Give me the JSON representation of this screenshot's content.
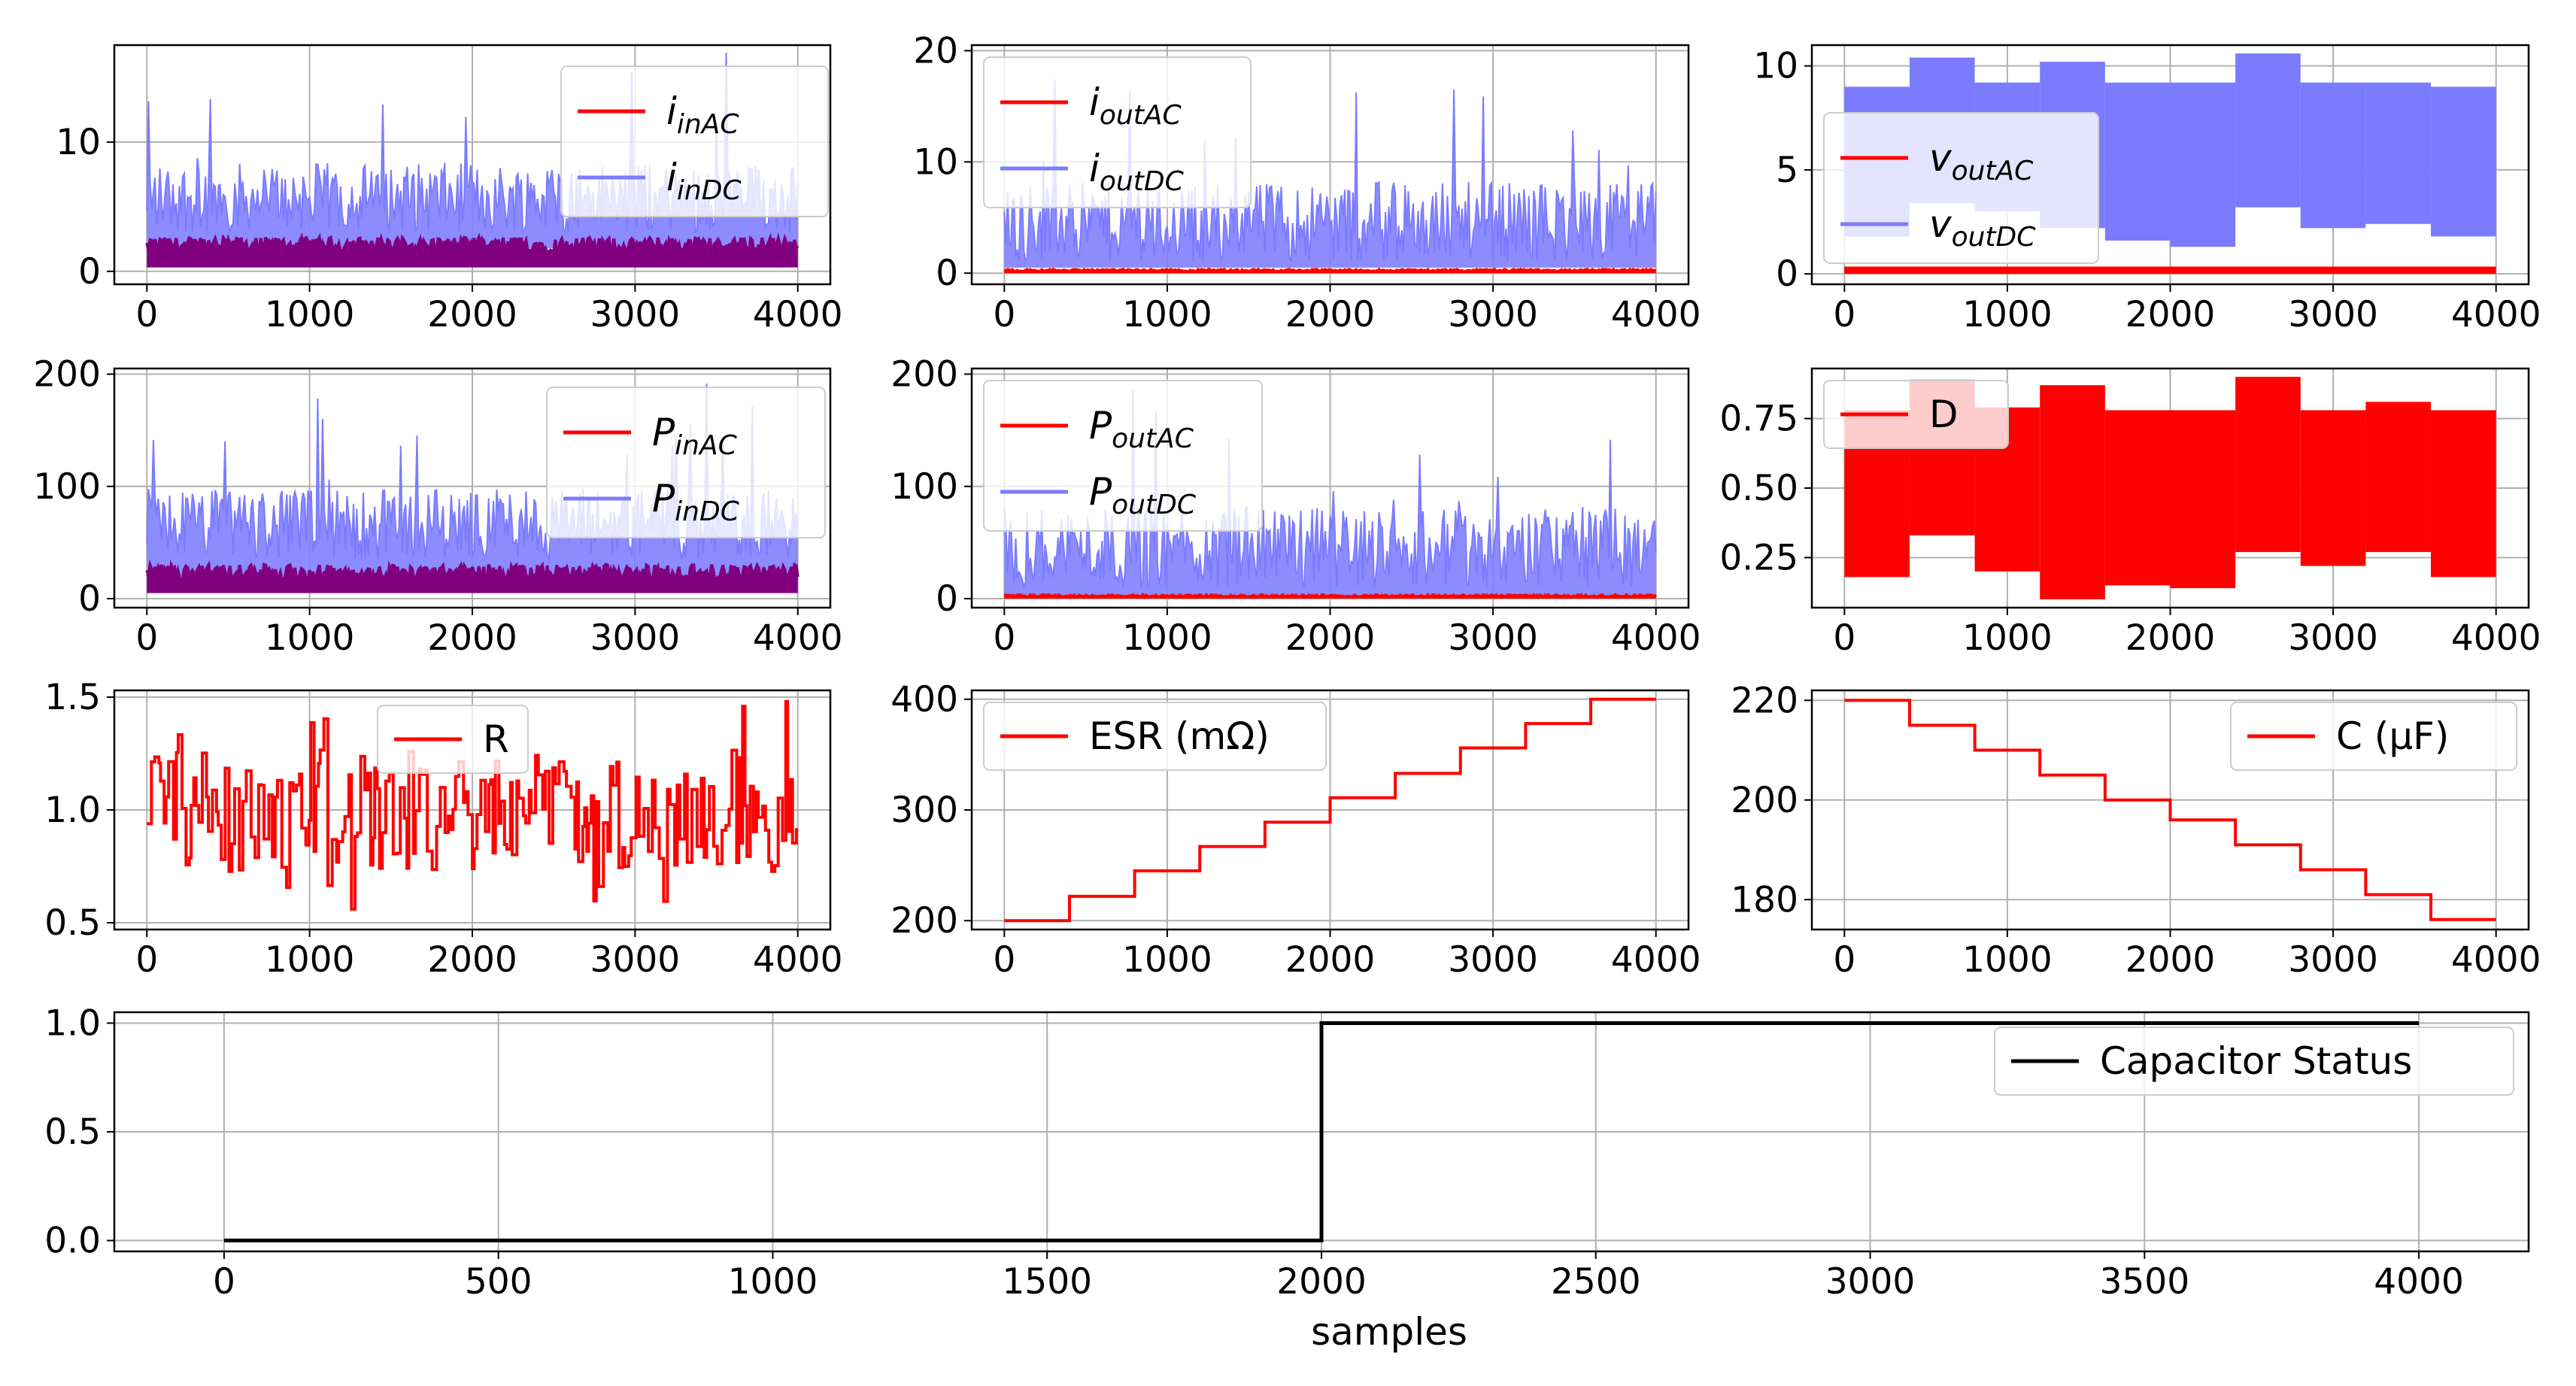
{
  "figure": {
    "xlabel": "samples"
  },
  "chart_data": [
    {
      "id": "i_in",
      "type": "line",
      "title": "",
      "x_range": [
        0,
        4000
      ],
      "ylim": [
        -1,
        17.5
      ],
      "xticks": [
        "0",
        "1000",
        "2000",
        "3000",
        "4000"
      ],
      "yticks": [
        {
          "v": 0,
          "label": "0"
        },
        {
          "v": 10,
          "label": "10"
        }
      ],
      "legend_position": "top-right",
      "series": [
        {
          "name": "i",
          "sub": "inAC",
          "color": "#ff0000",
          "base": 1.8,
          "amp": 1.2,
          "approx_range": [
            0.3,
            4.5
          ]
        },
        {
          "name": "i",
          "sub": "inDC",
          "color": "#7b7bff",
          "base": 3,
          "amp": 6,
          "approx_range": [
            2,
            17.2
          ]
        }
      ],
      "overlap_color": "#800080",
      "overlap_note": "AC and DC traces overlap producing purple band"
    },
    {
      "id": "i_out",
      "type": "line",
      "title": "",
      "x_range": [
        0,
        4000
      ],
      "ylim": [
        -1,
        20.5
      ],
      "xticks": [
        "0",
        "1000",
        "2000",
        "3000",
        "4000"
      ],
      "yticks": [
        {
          "v": 0,
          "label": "0"
        },
        {
          "v": 10,
          "label": "10"
        },
        {
          "v": 20,
          "label": "20"
        }
      ],
      "legend_position": "top-left",
      "series": [
        {
          "name": "i",
          "sub": "outAC",
          "color": "#ff0000",
          "base": 0.2,
          "amp": 0.2,
          "approx_range": [
            0,
            0.6
          ]
        },
        {
          "name": "i",
          "sub": "outDC",
          "color": "#7b7bff",
          "base": 1,
          "amp": 8,
          "approx_range": [
            0.5,
            19
          ]
        }
      ]
    },
    {
      "id": "v_out",
      "type": "line",
      "title": "",
      "x_range": [
        0,
        4000
      ],
      "ylim": [
        -0.5,
        11
      ],
      "xticks": [
        "0",
        "1000",
        "2000",
        "3000",
        "4000"
      ],
      "yticks": [
        {
          "v": 0,
          "label": "0"
        },
        {
          "v": 5,
          "label": "5"
        },
        {
          "v": 10,
          "label": "10"
        }
      ],
      "legend_position": "center-left",
      "series": [
        {
          "name": "v",
          "sub": "outAC",
          "color": "#ff0000",
          "approx_range": [
            0,
            0.4
          ]
        },
        {
          "name": "v",
          "sub": "outDC",
          "color": "#7b7bff",
          "bands": [
            {
              "x0": 0,
              "x1": 400,
              "lo": 1.8,
              "hi": 9
            },
            {
              "x0": 400,
              "x1": 800,
              "lo": 3.4,
              "hi": 10.4
            },
            {
              "x0": 800,
              "x1": 1200,
              "lo": 3.0,
              "hi": 9.2
            },
            {
              "x0": 1200,
              "x1": 1600,
              "lo": 2.2,
              "hi": 10.2
            },
            {
              "x0": 1600,
              "x1": 2000,
              "lo": 1.6,
              "hi": 9.2
            },
            {
              "x0": 2000,
              "x1": 2400,
              "lo": 1.3,
              "hi": 9.2
            },
            {
              "x0": 2400,
              "x1": 2800,
              "lo": 3.2,
              "hi": 10.6
            },
            {
              "x0": 2800,
              "x1": 3200,
              "lo": 2.2,
              "hi": 9.2
            },
            {
              "x0": 3200,
              "x1": 3600,
              "lo": 2.4,
              "hi": 9.2
            },
            {
              "x0": 3600,
              "x1": 4000,
              "lo": 1.8,
              "hi": 9.0
            }
          ]
        }
      ]
    },
    {
      "id": "p_in",
      "type": "line",
      "title": "",
      "x_range": [
        0,
        4000
      ],
      "ylim": [
        -8,
        205
      ],
      "xticks": [
        "0",
        "1000",
        "2000",
        "3000",
        "4000"
      ],
      "yticks": [
        {
          "v": 0,
          "label": "0"
        },
        {
          "v": 100,
          "label": "100"
        },
        {
          "v": 200,
          "label": "200"
        }
      ],
      "legend_position": "top-right",
      "series": [
        {
          "name": "P",
          "sub": "inAC",
          "color": "#ff0000",
          "base": 20,
          "amp": 15,
          "approx_range": [
            5,
            50
          ]
        },
        {
          "name": "P",
          "sub": "inDC",
          "color": "#7b7bff",
          "base": 35,
          "amp": 70,
          "approx_range": [
            20,
            205
          ]
        }
      ],
      "overlap_color": "#800080"
    },
    {
      "id": "p_out",
      "type": "line",
      "title": "",
      "x_range": [
        0,
        4000
      ],
      "ylim": [
        -8,
        205
      ],
      "xticks": [
        "0",
        "1000",
        "2000",
        "3000",
        "4000"
      ],
      "yticks": [
        {
          "v": 0,
          "label": "0"
        },
        {
          "v": 100,
          "label": "100"
        },
        {
          "v": 200,
          "label": "200"
        }
      ],
      "legend_position": "top-left",
      "series": [
        {
          "name": "P",
          "sub": "outAC",
          "color": "#ff0000",
          "base": 2,
          "amp": 2,
          "approx_range": [
            0,
            6
          ]
        },
        {
          "name": "P",
          "sub": "outDC",
          "color": "#7b7bff",
          "base": 10,
          "amp": 80,
          "approx_range": [
            0,
            195
          ]
        }
      ]
    },
    {
      "id": "duty",
      "type": "area",
      "title": "",
      "x_range": [
        0,
        4000
      ],
      "ylim": [
        0.07,
        0.93
      ],
      "xticks": [
        "0",
        "1000",
        "2000",
        "3000",
        "4000"
      ],
      "yticks": [
        {
          "v": 0.25,
          "label": "0.25"
        },
        {
          "v": 0.5,
          "label": "0.50"
        },
        {
          "v": 0.75,
          "label": "0.75"
        }
      ],
      "legend_position": "top-left",
      "series": [
        {
          "name": "D",
          "sub": "",
          "color": "#ff0000",
          "bands": [
            {
              "x0": 0,
              "x1": 400,
              "lo": 0.18,
              "hi": 0.78
            },
            {
              "x0": 400,
              "x1": 800,
              "lo": 0.33,
              "hi": 0.89
            },
            {
              "x0": 800,
              "x1": 1200,
              "lo": 0.2,
              "hi": 0.79
            },
            {
              "x0": 1200,
              "x1": 1600,
              "lo": 0.1,
              "hi": 0.87
            },
            {
              "x0": 1600,
              "x1": 2000,
              "lo": 0.15,
              "hi": 0.78
            },
            {
              "x0": 2000,
              "x1": 2400,
              "lo": 0.14,
              "hi": 0.78
            },
            {
              "x0": 2400,
              "x1": 2800,
              "lo": 0.27,
              "hi": 0.9
            },
            {
              "x0": 2800,
              "x1": 3200,
              "lo": 0.22,
              "hi": 0.78
            },
            {
              "x0": 3200,
              "x1": 3600,
              "lo": 0.27,
              "hi": 0.81
            },
            {
              "x0": 3600,
              "x1": 4000,
              "lo": 0.18,
              "hi": 0.78
            }
          ]
        }
      ]
    },
    {
      "id": "load",
      "type": "line",
      "title": "",
      "x_range": [
        0,
        4000
      ],
      "ylim": [
        0.47,
        1.53
      ],
      "xticks": [
        "0",
        "1000",
        "2000",
        "3000",
        "4000"
      ],
      "yticks": [
        {
          "v": 0.5,
          "label": "0.5"
        },
        {
          "v": 1.0,
          "label": "1.0"
        },
        {
          "v": 1.5,
          "label": "1.5"
        }
      ],
      "legend_position": "top-center",
      "series": [
        {
          "name": "R",
          "sub": "",
          "color": "#ff0000",
          "hold": 10,
          "approx_range": [
            0.53,
            1.5
          ]
        }
      ]
    },
    {
      "id": "esr",
      "type": "line",
      "title": "",
      "x_range": [
        0,
        4000
      ],
      "ylim": [
        192,
        408
      ],
      "xticks": [
        "0",
        "1000",
        "2000",
        "3000",
        "4000"
      ],
      "yticks": [
        {
          "v": 200,
          "label": "200"
        },
        {
          "v": 300,
          "label": "300"
        },
        {
          "v": 400,
          "label": "400"
        }
      ],
      "legend_position": "top-left",
      "series": [
        {
          "name": "ESR (mΩ)",
          "sub": "",
          "color": "#ff0000",
          "steps_x": [
            0,
            400,
            800,
            1200,
            1600,
            2000,
            2400,
            2800,
            3200,
            3600,
            4000
          ],
          "steps_y": [
            200,
            222,
            245,
            267,
            289,
            311,
            333,
            356,
            378,
            400,
            400
          ]
        }
      ]
    },
    {
      "id": "cap",
      "type": "line",
      "title": "",
      "x_range": [
        0,
        4000
      ],
      "ylim": [
        174,
        222
      ],
      "xticks": [
        "0",
        "1000",
        "2000",
        "3000",
        "4000"
      ],
      "yticks": [
        {
          "v": 180,
          "label": "180"
        },
        {
          "v": 200,
          "label": "200"
        },
        {
          "v": 220,
          "label": "220"
        }
      ],
      "legend_position": "top-right",
      "series": [
        {
          "name": "C (μF)",
          "sub": "",
          "color": "#ff0000",
          "steps_x": [
            0,
            400,
            800,
            1200,
            1600,
            2000,
            2400,
            2800,
            3200,
            3600,
            4000
          ],
          "steps_y": [
            220,
            215,
            210,
            205,
            200,
            196,
            191,
            186,
            181,
            176,
            176
          ]
        }
      ]
    },
    {
      "id": "status",
      "type": "line",
      "title": "",
      "x_range": [
        -200,
        4200
      ],
      "ylim": [
        -0.05,
        1.05
      ],
      "xticks": [
        "0",
        "500",
        "1000",
        "1500",
        "2000",
        "2500",
        "3000",
        "3500",
        "4000"
      ],
      "yticks": [
        {
          "v": 0,
          "label": "0.0"
        },
        {
          "v": 0.5,
          "label": "0.5"
        },
        {
          "v": 1,
          "label": "1.0"
        }
      ],
      "legend_position": "top-right",
      "xlabel": "samples",
      "series": [
        {
          "name": "Capacitor Status",
          "sub": "",
          "color": "#000000",
          "steps_x": [
            0,
            2000,
            4000
          ],
          "steps_y": [
            0,
            1,
            1
          ]
        }
      ]
    }
  ]
}
